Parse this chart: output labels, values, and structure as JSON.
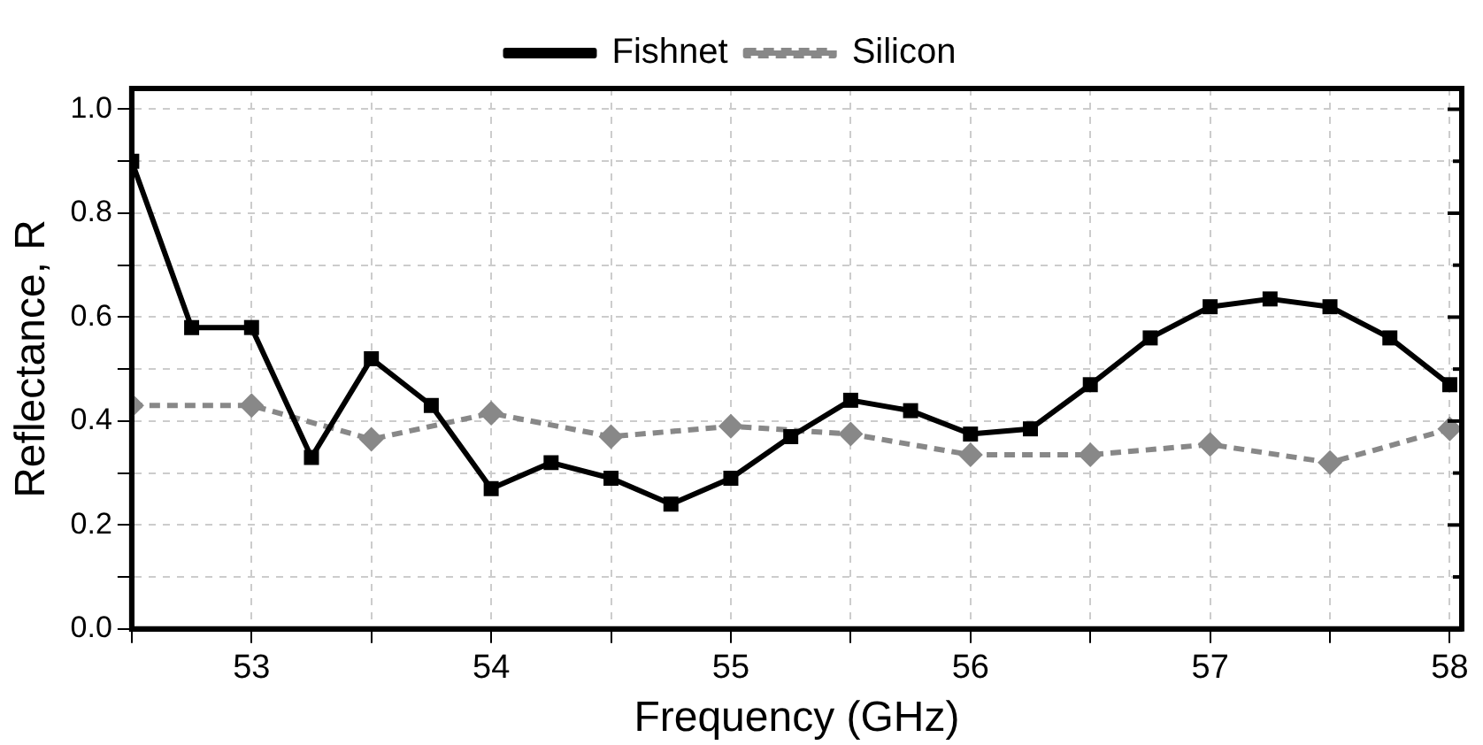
{
  "chart_data": {
    "type": "line",
    "xlabel": "Frequency (GHz)",
    "ylabel": "Reflectance, R",
    "xlim": [
      52.5,
      58.05
    ],
    "ylim": [
      0,
      1.04
    ],
    "xticks": [
      {
        "value": 52.5,
        "label": null
      },
      53,
      {
        "value": 53.5,
        "label": null
      },
      54,
      {
        "value": 54.5,
        "label": null
      },
      55,
      {
        "value": 55.5,
        "label": null
      },
      56,
      {
        "value": 56.5,
        "label": null
      },
      57,
      {
        "value": 57.5,
        "label": null
      },
      58
    ],
    "yticks": [
      {
        "value": 0,
        "label": "0.0"
      },
      {
        "value": 0.1,
        "label": null
      },
      0.2,
      {
        "value": 0.3,
        "label": null
      },
      0.4,
      {
        "value": 0.5,
        "label": null
      },
      0.6,
      {
        "value": 0.7,
        "label": null
      },
      0.8,
      {
        "value": 0.9,
        "label": null
      },
      {
        "value": 1,
        "label": "1.0"
      }
    ],
    "grid": true,
    "legend": "top",
    "series": [
      {
        "name": "Fishnet",
        "color": "#000000",
        "marker": "square",
        "line_style": "solid",
        "x": [
          52.5,
          52.75,
          53,
          53.25,
          53.5,
          53.75,
          54,
          54.25,
          54.5,
          54.75,
          55,
          55.25,
          55.5,
          55.75,
          56,
          56.25,
          56.5,
          56.75,
          57,
          57.25,
          57.5,
          57.75,
          58
        ],
        "values": [
          0.9,
          0.58,
          0.58,
          0.33,
          0.52,
          0.43,
          0.27,
          0.32,
          0.29,
          0.24,
          0.29,
          0.37,
          0.44,
          0.42,
          0.375,
          0.385,
          0.47,
          0.56,
          0.62,
          0.635,
          0.62,
          0.56,
          0.47
        ]
      },
      {
        "name": "Silicon",
        "color": "#888888",
        "marker": "diamond",
        "line_style": "dashed",
        "x": [
          52.5,
          53,
          53.5,
          54,
          54.5,
          55,
          55.5,
          56,
          56.5,
          57,
          57.5,
          58
        ],
        "values": [
          0.43,
          0.43,
          0.365,
          0.415,
          0.37,
          0.39,
          0.375,
          0.335,
          0.335,
          0.355,
          0.32,
          0.385
        ]
      }
    ]
  }
}
